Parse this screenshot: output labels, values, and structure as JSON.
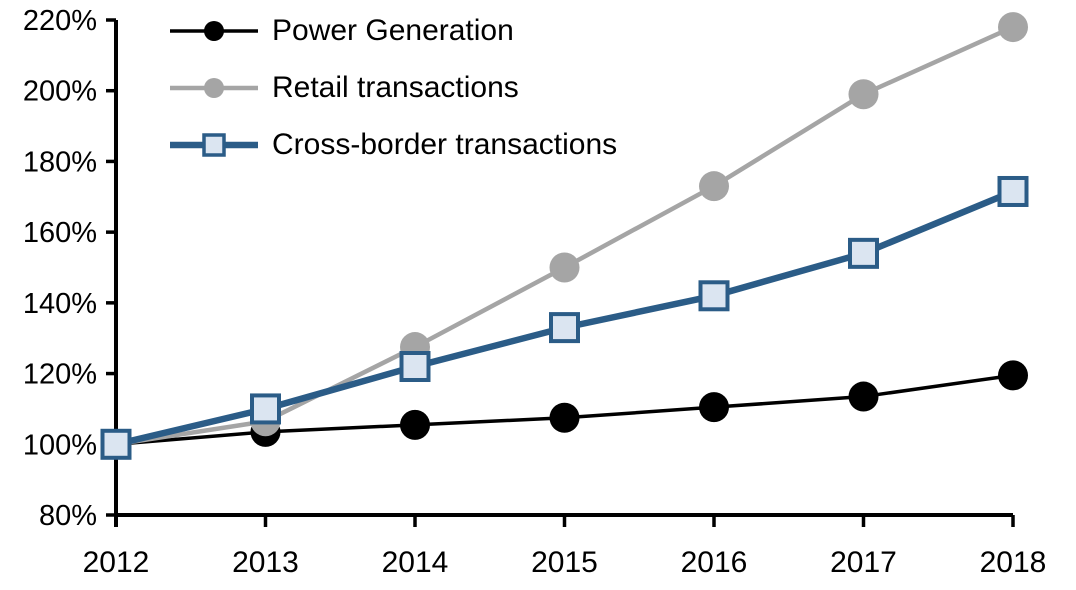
{
  "chart_data": {
    "type": "line",
    "title": "",
    "xlabel": "",
    "ylabel": "",
    "categories": [
      "2012",
      "2013",
      "2014",
      "2015",
      "2016",
      "2017",
      "2018"
    ],
    "series": [
      {
        "name": "Power Generation",
        "values": [
          100,
          103.5,
          105.5,
          107.5,
          110.5,
          113.5,
          119.5
        ],
        "line_color": "#000000",
        "line_width": 3.5,
        "marker": "circle",
        "marker_fill": "#000000",
        "marker_size": 15
      },
      {
        "name": "Retail transactions",
        "values": [
          100,
          106.5,
          127.5,
          150,
          173,
          199,
          218
        ],
        "line_color": "#a5a5a5",
        "line_width": 4.5,
        "marker": "circle",
        "marker_fill": "#a5a5a5",
        "marker_size": 15
      },
      {
        "name": "Cross-border transactions",
        "values": [
          100,
          110,
          122,
          133,
          142,
          154,
          171.5
        ],
        "line_color": "#2b5c87",
        "line_width": 6.5,
        "marker": "square",
        "marker_fill": "#dbe5f1",
        "marker_size": 27
      }
    ],
    "ylim": [
      80,
      220
    ],
    "ytick_step": 20,
    "ytick_suffix": "%",
    "grid": false,
    "legend_position": "top-left-inside"
  },
  "colors": {
    "background": "#ffffff",
    "axis": "#000000",
    "tick_text": "#000000"
  }
}
